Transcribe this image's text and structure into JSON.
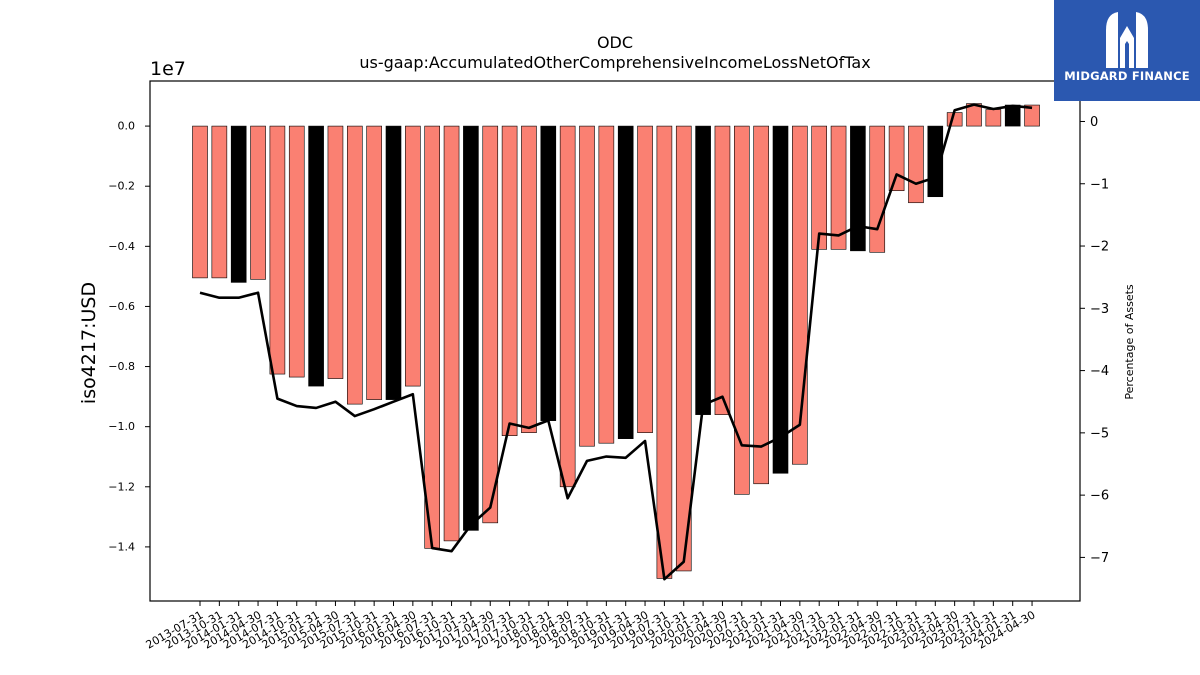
{
  "brand": {
    "name": "MIDGARD FINANCE",
    "logo_icon": "midgard-m-icon",
    "background": "#2b58b0"
  },
  "chart_data": {
    "type": "bar",
    "title": "ODC",
    "subtitle": "us-gaap:AccumulatedOtherComprehensiveIncomeLossNetOfTax",
    "ylabel": "iso4217:USD",
    "y2label": "Percentage of Assets",
    "y_offset_label": "1e7",
    "ylim": [
      -15800000,
      1500000
    ],
    "y_ticks": [
      0.0,
      -0.2,
      -0.4,
      -0.6,
      -0.8,
      -1.0,
      -1.2,
      -1.4
    ],
    "y2lim": [
      -7.7,
      0.65
    ],
    "y2_ticks": [
      0,
      -1,
      -2,
      -3,
      -4,
      -5,
      -6,
      -7
    ],
    "colors": {
      "quarter": "#fa8072",
      "fiscal_year_end": "#000000",
      "line": "#000000"
    },
    "categories": [
      "2013-07-31",
      "2013-10-31",
      "2014-01-31",
      "2014-04-30",
      "2014-07-31",
      "2014-10-31",
      "2015-01-31",
      "2015-04-30",
      "2015-07-31",
      "2015-10-31",
      "2016-01-31",
      "2016-04-30",
      "2016-07-31",
      "2016-10-31",
      "2017-01-31",
      "2017-04-30",
      "2017-07-31",
      "2017-10-31",
      "2018-01-31",
      "2018-04-30",
      "2018-07-31",
      "2018-10-31",
      "2019-01-31",
      "2019-04-30",
      "2019-07-31",
      "2019-10-31",
      "2020-01-31",
      "2020-04-30",
      "2020-07-31",
      "2020-10-31",
      "2021-01-31",
      "2021-04-30",
      "2021-07-31",
      "2021-10-31",
      "2022-01-31",
      "2022-04-30",
      "2022-07-31",
      "2022-10-31",
      "2023-01-31",
      "2023-04-30",
      "2023-07-31",
      "2023-10-31",
      "2024-01-31",
      "2024-04-30"
    ],
    "series": [
      {
        "type": "bar",
        "values": [
          -5050000,
          -5050000,
          -5200000,
          -5100000,
          -8250000,
          -8350000,
          -8650000,
          -8400000,
          -9250000,
          -9100000,
          -9100000,
          -8650000,
          -14050000,
          -13800000,
          -13450000,
          -13200000,
          -10300000,
          -10200000,
          -9800000,
          -12000000,
          -10650000,
          -10550000,
          -10400000,
          -10200000,
          -15050000,
          -14800000,
          -9600000,
          -9600000,
          -12250000,
          -11900000,
          -11550000,
          -11250000,
          -4100000,
          -4100000,
          -4150000,
          -4200000,
          -2150000,
          -2550000,
          -2350000,
          450000,
          750000,
          550000,
          700000,
          700000
        ],
        "fiscal_year_end": [
          false,
          false,
          true,
          false,
          false,
          false,
          true,
          false,
          false,
          false,
          true,
          false,
          false,
          false,
          true,
          false,
          false,
          false,
          true,
          false,
          false,
          false,
          true,
          false,
          false,
          false,
          true,
          false,
          false,
          false,
          true,
          false,
          false,
          false,
          true,
          false,
          false,
          false,
          true,
          false,
          false,
          false,
          true,
          false
        ]
      },
      {
        "type": "line",
        "axis": "right",
        "values": [
          -2.75,
          -2.83,
          -2.83,
          -2.75,
          -4.45,
          -4.57,
          -4.6,
          -4.5,
          -4.73,
          -4.62,
          -4.5,
          -4.38,
          -6.85,
          -6.9,
          -6.48,
          -6.2,
          -4.85,
          -4.92,
          -4.8,
          -6.05,
          -5.45,
          -5.38,
          -5.4,
          -5.13,
          -7.35,
          -7.07,
          -4.55,
          -4.42,
          -5.2,
          -5.22,
          -5.07,
          -4.87,
          -1.8,
          -1.83,
          -1.68,
          -1.73,
          -0.85,
          -1.0,
          -0.9,
          0.18,
          0.27,
          0.2,
          0.25,
          0.22
        ]
      }
    ]
  }
}
